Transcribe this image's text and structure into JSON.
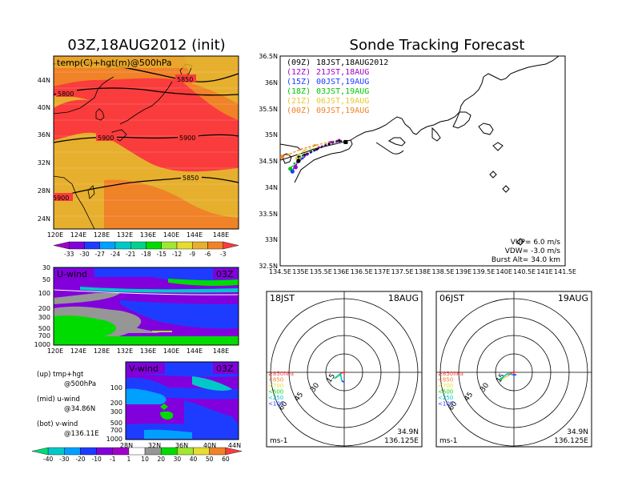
{
  "left_title": "03Z,18AUG2012 (init)",
  "right_title": "Sonde Tracking Forecast",
  "temp_map": {
    "label": "temp(C)+hgt(m)@500hPa",
    "lat_labels": [
      "44N",
      "40N",
      "36N",
      "32N",
      "28N",
      "24N"
    ],
    "lon_labels": [
      "120E",
      "124E",
      "128E",
      "132E",
      "136E",
      "140E",
      "144E",
      "148E"
    ],
    "contour_labels": [
      "5850",
      "5800",
      "5900",
      "5900",
      "5850",
      "5900"
    ],
    "colorbar": {
      "labels": [
        "-33",
        "-30",
        "-27",
        "-24",
        "-21",
        "-18",
        "-15",
        "-12",
        "-9",
        "-6",
        "-3"
      ],
      "colors": [
        "#a000c8",
        "#8200dc",
        "#1e3cff",
        "#00a0ff",
        "#00c8c8",
        "#00d28c",
        "#00dc00",
        "#a0e632",
        "#e6dc32",
        "#e6af2d",
        "#f08228",
        "#fa3c3c"
      ]
    }
  },
  "u_wind": {
    "label": "U-wind",
    "time": "03Z",
    "y_labels": [
      "30",
      "50",
      "100",
      "200",
      "300",
      "500",
      "700",
      "1000"
    ],
    "x_labels": [
      "120E",
      "124E",
      "128E",
      "132E",
      "136E",
      "140E",
      "144E",
      "148E"
    ]
  },
  "v_wind": {
    "label": "V-wind",
    "time": "03Z",
    "y_labels": [
      "100",
      "200",
      "300",
      "500",
      "700",
      "1000"
    ],
    "x_labels": [
      "28N",
      "32N",
      "36N",
      "40N",
      "44N"
    ]
  },
  "notes": [
    {
      "line1": "(up) tmp+hgt",
      "line2": "@500hPa"
    },
    {
      "line1": "(mid) u-wind",
      "line2": "@34.86N"
    },
    {
      "line1": "(bot) v-wind",
      "line2": "@136.11E"
    }
  ],
  "wind_colorbar": {
    "labels": [
      "-40",
      "-30",
      "-20",
      "-10",
      "-1",
      "1",
      "10",
      "20",
      "30",
      "40",
      "50",
      "60"
    ],
    "colors": [
      "#00dc78",
      "#00c8c8",
      "#00a0ff",
      "#1e3cff",
      "#8200dc",
      "#a000c8",
      "#ffffff",
      "#969696",
      "#00dc00",
      "#a0e632",
      "#e6dc32",
      "#f08228",
      "#fa3c3c"
    ]
  },
  "tracking_map": {
    "lat_labels": [
      "36.5N",
      "36N",
      "35.5N",
      "35N",
      "34.5N",
      "34N",
      "33.5N",
      "33N",
      "32.5N"
    ],
    "lon_labels": [
      "134.5E",
      "135E",
      "135.5E",
      "136E",
      "136.5E",
      "137E",
      "137.5E",
      "138E",
      "138.5E",
      "139E",
      "139.5E",
      "140E",
      "140.5E",
      "141E",
      "141.5E"
    ],
    "legend": [
      {
        "code": "(09Z)",
        "time": "18JST,18AUG2012",
        "color": "#000000"
      },
      {
        "code": "(12Z)",
        "time": "21JST,18AUG",
        "color": "#a000c8"
      },
      {
        "code": "(15Z)",
        "time": "00JST,19AUG",
        "color": "#1e3cff"
      },
      {
        "code": "(18Z)",
        "time": "03JST,19AUG",
        "color": "#00c800"
      },
      {
        "code": "(21Z)",
        "time": "06JST,19AUG",
        "color": "#e6c832"
      },
      {
        "code": "(00Z)",
        "time": "09JST,19AUG",
        "color": "#f08228"
      }
    ],
    "info": [
      "VUP=  6.0  m/s",
      "VDW= -3.0  m/s",
      "Burst Alt=  34.0  km"
    ]
  },
  "chart_data": [
    {
      "type": "line",
      "title": "Sonde Tracking Forecast",
      "xlim": [
        134.5,
        141.5
      ],
      "ylim": [
        32.5,
        36.5
      ],
      "launch": [
        136.11,
        34.86
      ],
      "series": [
        {
          "name": "(09Z) 18JST,18AUG2012",
          "color": "#000000",
          "x": [
            136.11,
            135.95,
            135.7,
            135.4,
            135.1,
            134.95,
            134.95
          ],
          "y": [
            34.86,
            34.88,
            34.82,
            34.72,
            34.62,
            34.58,
            34.5
          ]
        },
        {
          "name": "(12Z) 21JST,18AUG",
          "color": "#a000c8",
          "x": [
            136.11,
            135.95,
            135.75,
            135.45,
            135.15,
            134.92,
            134.88
          ],
          "y": [
            34.86,
            34.9,
            34.86,
            34.76,
            34.62,
            34.48,
            34.38
          ]
        },
        {
          "name": "(15Z) 00JST,19AUG",
          "color": "#1e3cff",
          "x": [
            136.11,
            135.95,
            135.7,
            135.35,
            135.05,
            134.85,
            134.8
          ],
          "y": [
            34.86,
            34.88,
            34.82,
            34.7,
            34.55,
            34.4,
            34.3
          ]
        },
        {
          "name": "(18Z) 03JST,19AUG",
          "color": "#00c800",
          "x": [
            136.11,
            135.95,
            135.7,
            135.35,
            135.05,
            134.85,
            134.75
          ],
          "y": [
            34.86,
            34.88,
            34.82,
            34.72,
            34.6,
            34.45,
            34.35
          ]
        },
        {
          "name": "(21Z) 06JST,19AUG",
          "color": "#e6c832",
          "x": [
            136.11,
            135.95,
            135.7,
            135.4,
            135.1,
            134.95,
            134.92
          ],
          "y": [
            34.86,
            34.9,
            34.86,
            34.8,
            34.7,
            34.62,
            34.55
          ]
        },
        {
          "name": "(00Z) 09JST,19AUG",
          "color": "#f08228",
          "x": [
            136.11,
            135.95,
            135.7,
            135.35,
            135.0,
            134.7,
            134.55
          ],
          "y": [
            34.86,
            34.9,
            34.86,
            34.8,
            34.72,
            34.62,
            34.58
          ]
        }
      ]
    },
    {
      "type": "line",
      "time": "18JST",
      "date": "18AUG",
      "location": [
        "34.9N",
        "136.125E"
      ],
      "unit": "ms-1",
      "ring_labels": [
        "15",
        "30",
        "45",
        "60"
      ],
      "hodograph": [
        [
          0,
          0
        ],
        [
          -3,
          -1
        ],
        [
          -4,
          -3
        ],
        [
          -6,
          -4
        ],
        [
          -8,
          -5
        ],
        [
          -3,
          -1
        ],
        [
          -2,
          -7
        ],
        [
          0,
          -8
        ]
      ],
      "levels": [
        {
          "label": "≥850hPa",
          "color": "#fa3c3c"
        },
        {
          "label": "<850",
          "color": "#f08228"
        },
        {
          "label": "<700",
          "color": "#e6dc32"
        },
        {
          "label": "<500",
          "color": "#00dc00"
        },
        {
          "label": "<250",
          "color": "#00c8c8"
        },
        {
          "label": "<100",
          "color": "#1e3cff"
        }
      ]
    },
    {
      "type": "line",
      "time": "06JST",
      "date": "19AUG",
      "location": [
        "34.9N",
        "136.125E"
      ],
      "unit": "ms-1",
      "ring_labels": [
        "15",
        "30",
        "45",
        "60"
      ],
      "hodograph": [
        [
          0,
          0
        ],
        [
          -3,
          -1
        ],
        [
          -5,
          -3
        ],
        [
          -9,
          -5
        ],
        [
          -12,
          -6
        ],
        [
          -5,
          -1
        ],
        [
          -1,
          -2
        ],
        [
          2,
          -2
        ]
      ],
      "levels": [
        {
          "label": "≥850hPa",
          "color": "#fa3c3c"
        },
        {
          "label": "<850",
          "color": "#f08228"
        },
        {
          "label": "<700",
          "color": "#e6dc32"
        },
        {
          "label": "<500",
          "color": "#00dc00"
        },
        {
          "label": "<250",
          "color": "#00c8c8"
        },
        {
          "label": "<100",
          "color": "#1e3cff"
        }
      ]
    }
  ]
}
